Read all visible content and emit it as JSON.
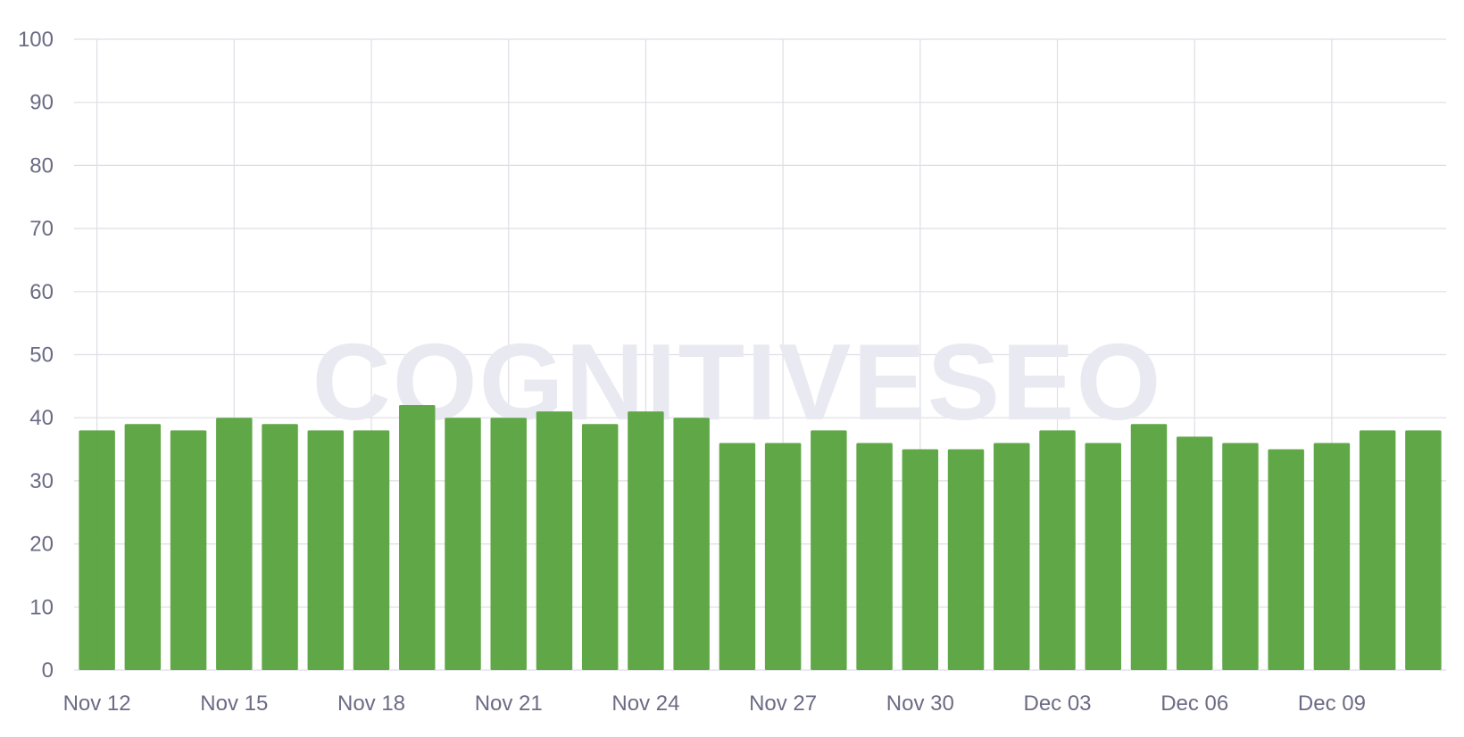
{
  "watermark": "COGNITIVESEO",
  "colors": {
    "bar": "#5aa440",
    "grid": "#dedee6",
    "tick_text": "#6b6b85",
    "watermark": "#e9e9f2"
  },
  "chart_data": {
    "type": "bar",
    "title": "",
    "xlabel": "",
    "ylabel": "",
    "ylim": [
      0,
      100
    ],
    "yticks": [
      0,
      10,
      20,
      30,
      40,
      50,
      60,
      70,
      80,
      90,
      100
    ],
    "grid": true,
    "x_tick_labels": [
      "Nov 12",
      "Nov 15",
      "Nov 18",
      "Nov 21",
      "Nov 24",
      "Nov 27",
      "Nov 30",
      "Dec 03",
      "Dec 06",
      "Dec 09"
    ],
    "categories": [
      "Nov 12",
      "Nov 13",
      "Nov 14",
      "Nov 15",
      "Nov 16",
      "Nov 17",
      "Nov 18",
      "Nov 19",
      "Nov 20",
      "Nov 21",
      "Nov 22",
      "Nov 23",
      "Nov 24",
      "Nov 25",
      "Nov 26",
      "Nov 27",
      "Nov 28",
      "Nov 29",
      "Nov 30",
      "Dec 01",
      "Dec 02",
      "Dec 03",
      "Dec 04",
      "Dec 05",
      "Dec 06",
      "Dec 07",
      "Dec 08",
      "Dec 09",
      "Dec 10",
      "Dec 11"
    ],
    "values": [
      38,
      39,
      38,
      40,
      39,
      38,
      38,
      42,
      40,
      40,
      41,
      39,
      41,
      40,
      36,
      36,
      38,
      36,
      35,
      35,
      36,
      38,
      36,
      39,
      37,
      36,
      35,
      36,
      38,
      38
    ]
  }
}
